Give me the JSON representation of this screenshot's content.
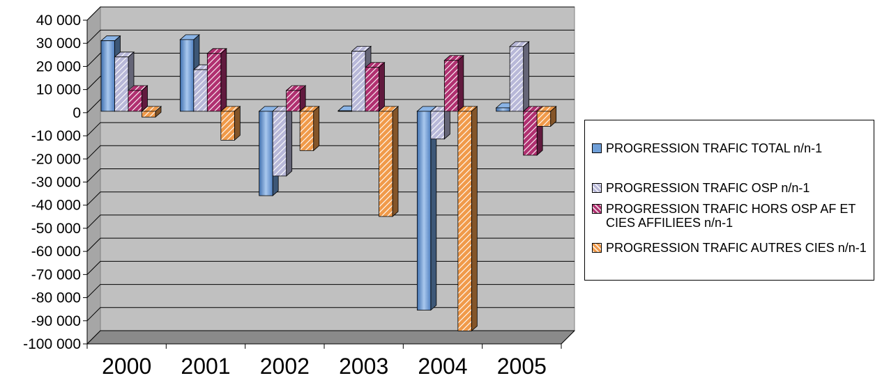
{
  "chart_data": {
    "type": "bar",
    "categories": [
      "2000",
      "2001",
      "2002",
      "2003",
      "2004",
      "2005"
    ],
    "series": [
      {
        "name": "PROGRESSION TRAFIC TOTAL n/n-1",
        "values": [
          30500,
          31000,
          -36500,
          200,
          -86000,
          1500
        ],
        "color": "#6f9fd8"
      },
      {
        "name": "PROGRESSION TRAFIC OSP n/n-1",
        "values": [
          23500,
          18000,
          -28000,
          26000,
          -12000,
          28000
        ],
        "color": "#b8b8d8"
      },
      {
        "name": "PROGRESSION TRAFIC HORS OSP AF ET CIES AFFILIEES n/n-1",
        "values": [
          9000,
          25000,
          9000,
          19000,
          22000,
          -19000
        ],
        "color": "#b03070"
      },
      {
        "name": "PROGRESSION TRAFIC AUTRES CIES n/n-1",
        "values": [
          -2500,
          -12500,
          -17000,
          -45500,
          -95000,
          -6500
        ],
        "color": "#f09a4a"
      }
    ],
    "ylim": [
      -100000,
      40000
    ],
    "yticks": [
      "40 000",
      "30 000",
      "20 000",
      "10 000",
      "0",
      "-10 000",
      "-20 000",
      "-30 000",
      "-40 000",
      "-50 000",
      "-60 000",
      "-70 000",
      "-80 000",
      "-90 000",
      "-100 000"
    ],
    "ytick_values": [
      40000,
      30000,
      20000,
      10000,
      0,
      -10000,
      -20000,
      -30000,
      -40000,
      -50000,
      -60000,
      -70000,
      -80000,
      -90000,
      -100000
    ],
    "grid": true,
    "legend_position": "right",
    "title": "",
    "xlabel": "",
    "ylabel": ""
  }
}
